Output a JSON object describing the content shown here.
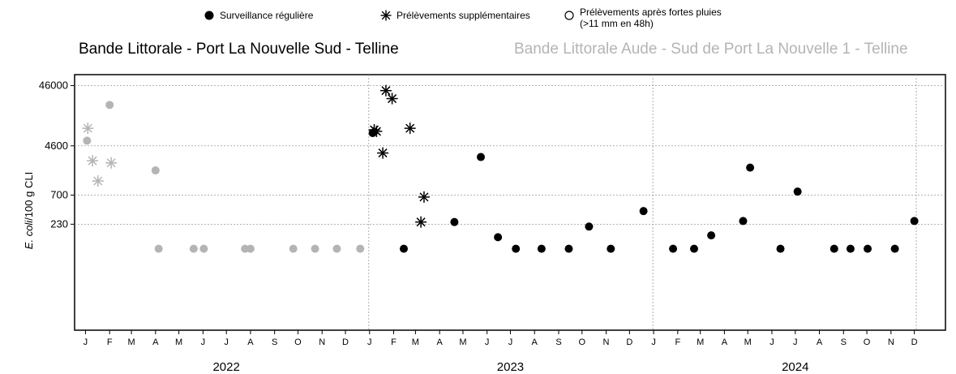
{
  "legend": {
    "regular": "Surveillance régulière",
    "extra": "Prélèvements supplémentaires",
    "rain": "Prélèvements après fortes pluies (>11 mm en 48h)"
  },
  "titles": {
    "left": "Bande Littorale - Port La Nouvelle Sud - Telline",
    "right": "Bande Littorale Aude - Sud de Port La Nouvelle 1 - Telline"
  },
  "colors": {
    "site1": "#000000",
    "site2": "#b4b4b4",
    "grid": "#9a9a9a"
  },
  "chart_data": {
    "type": "scatter",
    "ylabel": "E. coli/100 g CLI",
    "ylabel_italic_part": "E. coli",
    "ylabel_rest": "/100 g CLI",
    "y_scale": "log",
    "y_ticks": [
      {
        "value": 46000,
        "label": "46000"
      },
      {
        "value": 4600,
        "label": "4600"
      },
      {
        "value": 700,
        "label": "700"
      },
      {
        "value": 230,
        "label": "230"
      }
    ],
    "ylim": [
      4,
      70000
    ],
    "xlim": [
      "2021-12-18",
      "2025-01-10"
    ],
    "x_month_ticks": [
      {
        "date": "2022-01-01",
        "label": "J"
      },
      {
        "date": "2022-02-01",
        "label": "F"
      },
      {
        "date": "2022-03-01",
        "label": "M"
      },
      {
        "date": "2022-04-01",
        "label": "A"
      },
      {
        "date": "2022-05-01",
        "label": "M"
      },
      {
        "date": "2022-06-01",
        "label": "J"
      },
      {
        "date": "2022-07-01",
        "label": "J"
      },
      {
        "date": "2022-08-01",
        "label": "A"
      },
      {
        "date": "2022-09-01",
        "label": "S"
      },
      {
        "date": "2022-10-01",
        "label": "O"
      },
      {
        "date": "2022-11-01",
        "label": "N"
      },
      {
        "date": "2022-12-01",
        "label": "D"
      },
      {
        "date": "2023-01-01",
        "label": "J"
      },
      {
        "date": "2023-02-01",
        "label": "F"
      },
      {
        "date": "2023-03-01",
        "label": "M"
      },
      {
        "date": "2023-04-01",
        "label": "A"
      },
      {
        "date": "2023-05-01",
        "label": "M"
      },
      {
        "date": "2023-06-01",
        "label": "J"
      },
      {
        "date": "2023-07-01",
        "label": "J"
      },
      {
        "date": "2023-08-01",
        "label": "A"
      },
      {
        "date": "2023-09-01",
        "label": "S"
      },
      {
        "date": "2023-10-01",
        "label": "O"
      },
      {
        "date": "2023-11-01",
        "label": "N"
      },
      {
        "date": "2023-12-01",
        "label": "D"
      },
      {
        "date": "2024-01-01",
        "label": "J"
      },
      {
        "date": "2024-02-01",
        "label": "F"
      },
      {
        "date": "2024-03-01",
        "label": "M"
      },
      {
        "date": "2024-04-01",
        "label": "A"
      },
      {
        "date": "2024-05-01",
        "label": "M"
      },
      {
        "date": "2024-06-01",
        "label": "J"
      },
      {
        "date": "2024-07-01",
        "label": "J"
      },
      {
        "date": "2024-08-01",
        "label": "A"
      },
      {
        "date": "2024-09-01",
        "label": "S"
      },
      {
        "date": "2024-10-01",
        "label": "O"
      },
      {
        "date": "2024-11-01",
        "label": "N"
      },
      {
        "date": "2024-12-01",
        "label": "D"
      }
    ],
    "years": [
      {
        "label": "2022",
        "date": "2022-07-01"
      },
      {
        "label": "2023",
        "date": "2023-07-01"
      },
      {
        "label": "2024",
        "date": "2024-07-01"
      }
    ],
    "year_boundaries": [
      "2022-12-31",
      "2023-12-31"
    ],
    "grid": true,
    "series": [
      {
        "name": "Bande Littorale Aude - Sud de Port La Nouvelle 1 - Telline",
        "color": "#b4b4b4",
        "points": [
          {
            "date": "2022-01-03",
            "value": 5600,
            "kind": "regular"
          },
          {
            "date": "2022-01-04",
            "value": 9000,
            "kind": "extra"
          },
          {
            "date": "2022-01-10",
            "value": 2600,
            "kind": "extra"
          },
          {
            "date": "2022-01-17",
            "value": 1200,
            "kind": "extra"
          },
          {
            "date": "2022-02-01",
            "value": 22000,
            "kind": "regular"
          },
          {
            "date": "2022-02-03",
            "value": 2400,
            "kind": "extra"
          },
          {
            "date": "2022-04-01",
            "value": 1800,
            "kind": "regular"
          },
          {
            "date": "2022-04-05",
            "value": 90,
            "kind": "regular"
          },
          {
            "date": "2022-05-20",
            "value": 90,
            "kind": "regular"
          },
          {
            "date": "2022-06-02",
            "value": 90,
            "kind": "regular"
          },
          {
            "date": "2022-07-25",
            "value": 90,
            "kind": "regular"
          },
          {
            "date": "2022-08-01",
            "value": 90,
            "kind": "regular"
          },
          {
            "date": "2022-09-25",
            "value": 90,
            "kind": "regular"
          },
          {
            "date": "2022-10-23",
            "value": 90,
            "kind": "regular"
          },
          {
            "date": "2022-11-20",
            "value": 90,
            "kind": "regular"
          },
          {
            "date": "2022-12-20",
            "value": 90,
            "kind": "regular"
          }
        ]
      },
      {
        "name": "Bande Littorale - Port La Nouvelle Sud - Telline",
        "color": "#000000",
        "points": [
          {
            "date": "2023-01-05",
            "value": 7500,
            "kind": "regular"
          },
          {
            "date": "2023-01-07",
            "value": 8500,
            "kind": "extra"
          },
          {
            "date": "2023-01-10",
            "value": 8000,
            "kind": "extra"
          },
          {
            "date": "2023-01-18",
            "value": 3500,
            "kind": "extra"
          },
          {
            "date": "2023-01-22",
            "value": 38000,
            "kind": "extra"
          },
          {
            "date": "2023-01-30",
            "value": 28000,
            "kind": "extra"
          },
          {
            "date": "2023-02-14",
            "value": 90,
            "kind": "regular"
          },
          {
            "date": "2023-02-22",
            "value": 9000,
            "kind": "extra"
          },
          {
            "date": "2023-03-08",
            "value": 250,
            "kind": "extra"
          },
          {
            "date": "2023-03-12",
            "value": 650,
            "kind": "extra"
          },
          {
            "date": "2023-04-20",
            "value": 250,
            "kind": "regular"
          },
          {
            "date": "2023-05-24",
            "value": 3000,
            "kind": "regular"
          },
          {
            "date": "2023-06-15",
            "value": 140,
            "kind": "regular"
          },
          {
            "date": "2023-07-08",
            "value": 90,
            "kind": "regular"
          },
          {
            "date": "2023-08-10",
            "value": 90,
            "kind": "regular"
          },
          {
            "date": "2023-09-14",
            "value": 90,
            "kind": "regular"
          },
          {
            "date": "2023-10-10",
            "value": 210,
            "kind": "regular"
          },
          {
            "date": "2023-11-07",
            "value": 90,
            "kind": "regular"
          },
          {
            "date": "2023-12-19",
            "value": 380,
            "kind": "regular"
          },
          {
            "date": "2024-01-26",
            "value": 90,
            "kind": "regular"
          },
          {
            "date": "2024-02-22",
            "value": 90,
            "kind": "regular"
          },
          {
            "date": "2024-03-15",
            "value": 150,
            "kind": "regular"
          },
          {
            "date": "2024-04-25",
            "value": 260,
            "kind": "regular"
          },
          {
            "date": "2024-05-04",
            "value": 2000,
            "kind": "regular"
          },
          {
            "date": "2024-06-12",
            "value": 90,
            "kind": "regular"
          },
          {
            "date": "2024-07-04",
            "value": 800,
            "kind": "regular"
          },
          {
            "date": "2024-08-20",
            "value": 90,
            "kind": "regular"
          },
          {
            "date": "2024-09-10",
            "value": 90,
            "kind": "regular"
          },
          {
            "date": "2024-10-02",
            "value": 90,
            "kind": "regular"
          },
          {
            "date": "2024-11-06",
            "value": 90,
            "kind": "regular"
          },
          {
            "date": "2024-12-01",
            "value": 260,
            "kind": "regular"
          }
        ]
      }
    ]
  }
}
